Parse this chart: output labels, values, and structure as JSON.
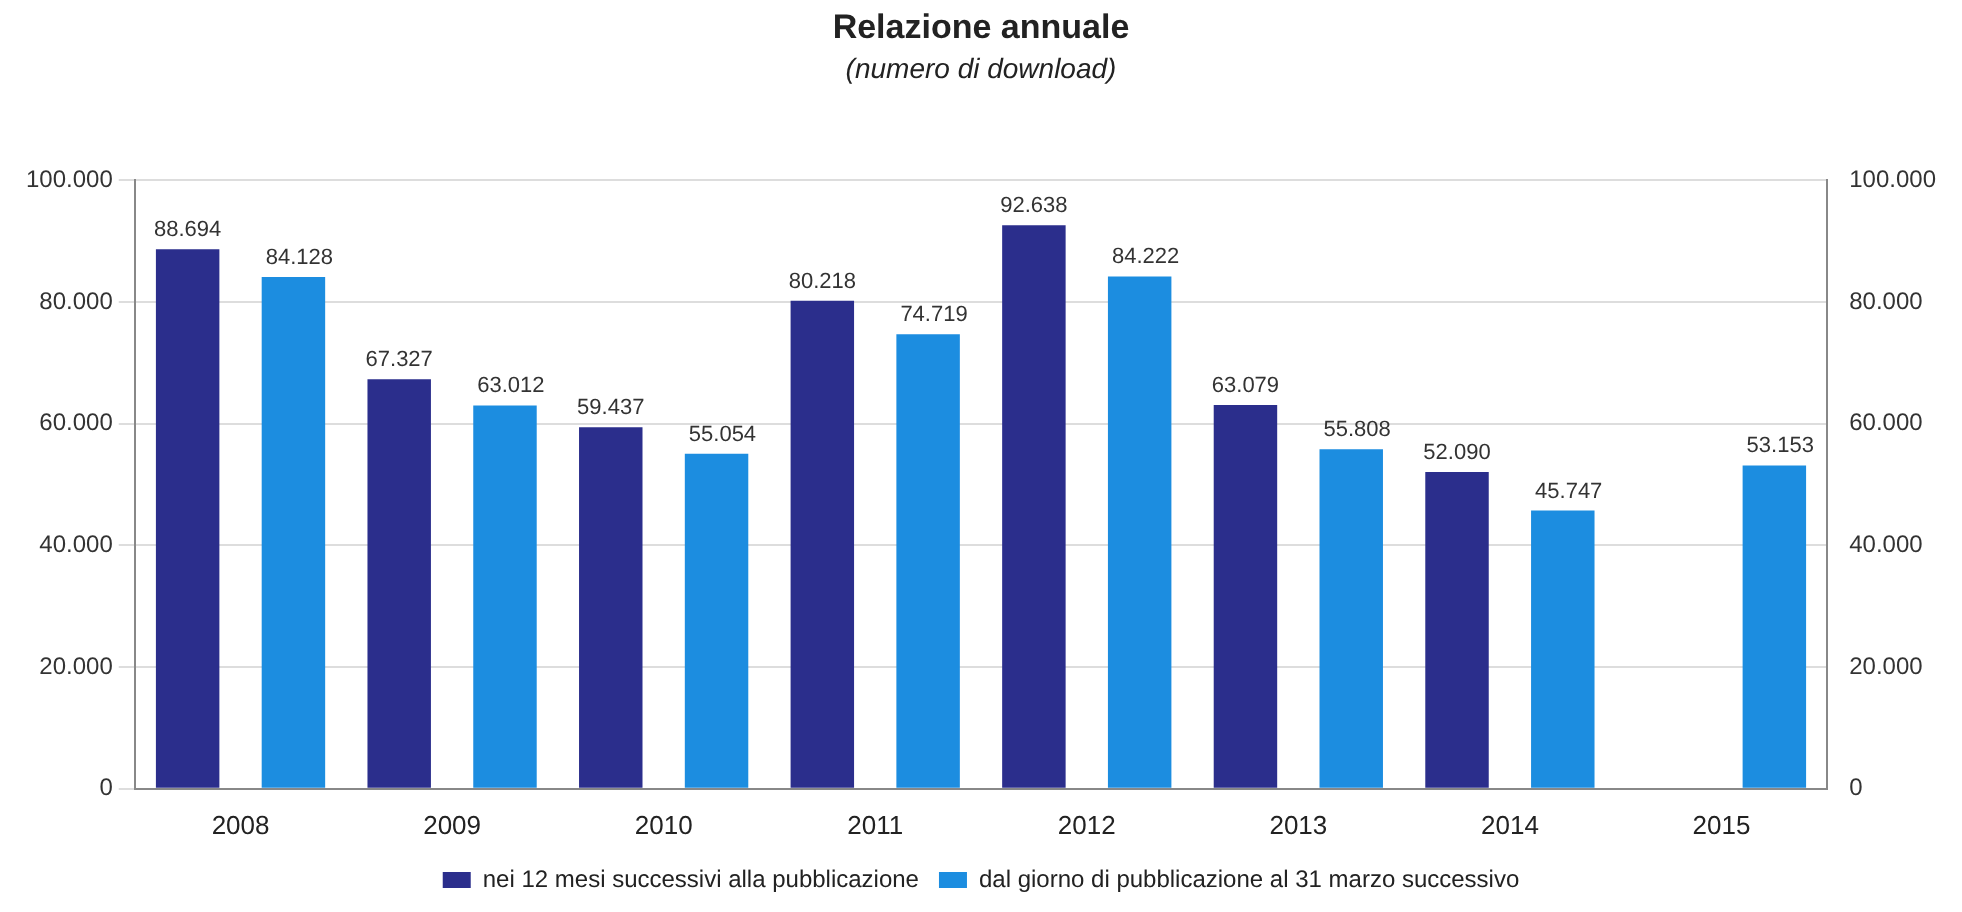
{
  "chart_data": {
    "type": "bar",
    "title": "Relazione annuale",
    "subtitle": "(numero di download)",
    "categories": [
      "2008",
      "2009",
      "2010",
      "2011",
      "2012",
      "2013",
      "2014",
      "2015"
    ],
    "series": [
      {
        "name": "nei 12 mesi successivi alla pubblicazione",
        "color": "#2b2e8c",
        "values": [
          88694,
          67327,
          59437,
          80218,
          92638,
          63079,
          52090,
          null
        ],
        "value_labels": [
          "88.694",
          "67.327",
          "59.437",
          "80.218",
          "92.638",
          "63.079",
          "52.090",
          null
        ]
      },
      {
        "name": "dal giorno di pubblicazione al 31 marzo successivo",
        "color": "#1c8de0",
        "values": [
          84128,
          63012,
          55054,
          74719,
          84222,
          55808,
          45747,
          53153
        ],
        "value_labels": [
          "84.128",
          "63.012",
          "55.054",
          "74.719",
          "84.222",
          "55.808",
          "45.747",
          "53.153"
        ]
      }
    ],
    "ylim": [
      0,
      100000
    ],
    "yticks": [
      {
        "value": 0,
        "label": "0"
      },
      {
        "value": 20000,
        "label": "20.000"
      },
      {
        "value": 40000,
        "label": "40.000"
      },
      {
        "value": 60000,
        "label": "60.000"
      },
      {
        "value": 80000,
        "label": "80.000"
      },
      {
        "value": 100000,
        "label": "100.000"
      }
    ],
    "y2lim": [
      0,
      100000
    ],
    "y2ticks": [
      {
        "value": 0,
        "label": "0"
      },
      {
        "value": 20000,
        "label": "20.000"
      },
      {
        "value": 40000,
        "label": "40.000"
      },
      {
        "value": 60000,
        "label": "60.000"
      },
      {
        "value": 80000,
        "label": "80.000"
      },
      {
        "value": 100000,
        "label": "100.000"
      }
    ],
    "grid": "y",
    "legend": "bottom"
  }
}
